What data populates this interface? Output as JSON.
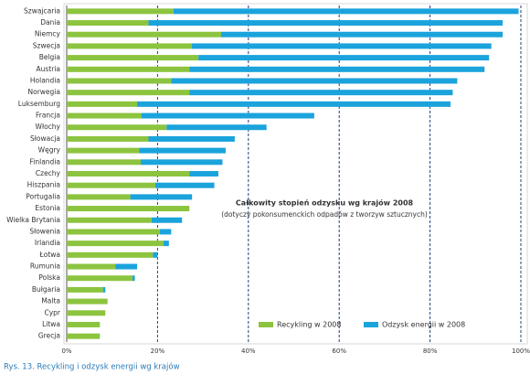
{
  "chart_data": {
    "type": "bar",
    "orientation": "horizontal",
    "stacked": true,
    "title": "Całkowity stopień odzysku wg krajów 2008",
    "subtitle": "(dotyczy pokonsumenckich odpadów z tworzyw sztucznych)",
    "caption": "Rys. 13. Recykling i odzysk energii wg krajów",
    "categories": [
      "Szwajcaria",
      "Dania",
      "Niemcy",
      "Szwecja",
      "Belgia",
      "Austria",
      "Holandia",
      "Norwegia",
      "Luksemburg",
      "Francja",
      "Włochy",
      "Słowacja",
      "Węgry",
      "Finlandia",
      "Czechy",
      "Hiszpania",
      "Portugalia",
      "Estonia",
      "Wielka Brytania",
      "Słowenia",
      "Irlandia",
      "Łotwa",
      "Rumunia",
      "Polska",
      "Bułgaria",
      "Malta",
      "Cypr",
      "Litwa",
      "Grecja"
    ],
    "series": [
      {
        "name": "Recykling w 2008",
        "color": "#8cc43f",
        "values": [
          23.5,
          18,
          34,
          27.5,
          29,
          27,
          23,
          27,
          15.5,
          16.5,
          22,
          18,
          16,
          16.3,
          27,
          19.5,
          14,
          27,
          18.7,
          20.5,
          21.3,
          19,
          10.7,
          14.5,
          8,
          9,
          8.5,
          7.3,
          7.3
        ]
      },
      {
        "name": "Odzysk energii w 2008",
        "color": "#1ba3dc",
        "values": [
          76,
          78,
          62,
          66,
          64,
          65,
          63,
          58,
          69,
          38,
          22,
          19,
          19,
          18,
          6.4,
          13,
          13.6,
          0,
          6.7,
          2.5,
          1.2,
          1,
          4.8,
          0.5,
          0.5,
          0,
          0,
          0,
          0
        ]
      }
    ],
    "xlim": [
      0,
      100
    ],
    "xticks": [
      {
        "value": 0,
        "label": "0%"
      },
      {
        "value": 20,
        "label": "20%"
      },
      {
        "value": 40,
        "label": "40%"
      },
      {
        "value": 60,
        "label": "60%"
      },
      {
        "value": 80,
        "label": "80%"
      },
      {
        "value": 100,
        "label": "100%"
      }
    ],
    "grid": true,
    "legend_position": "bottom"
  }
}
